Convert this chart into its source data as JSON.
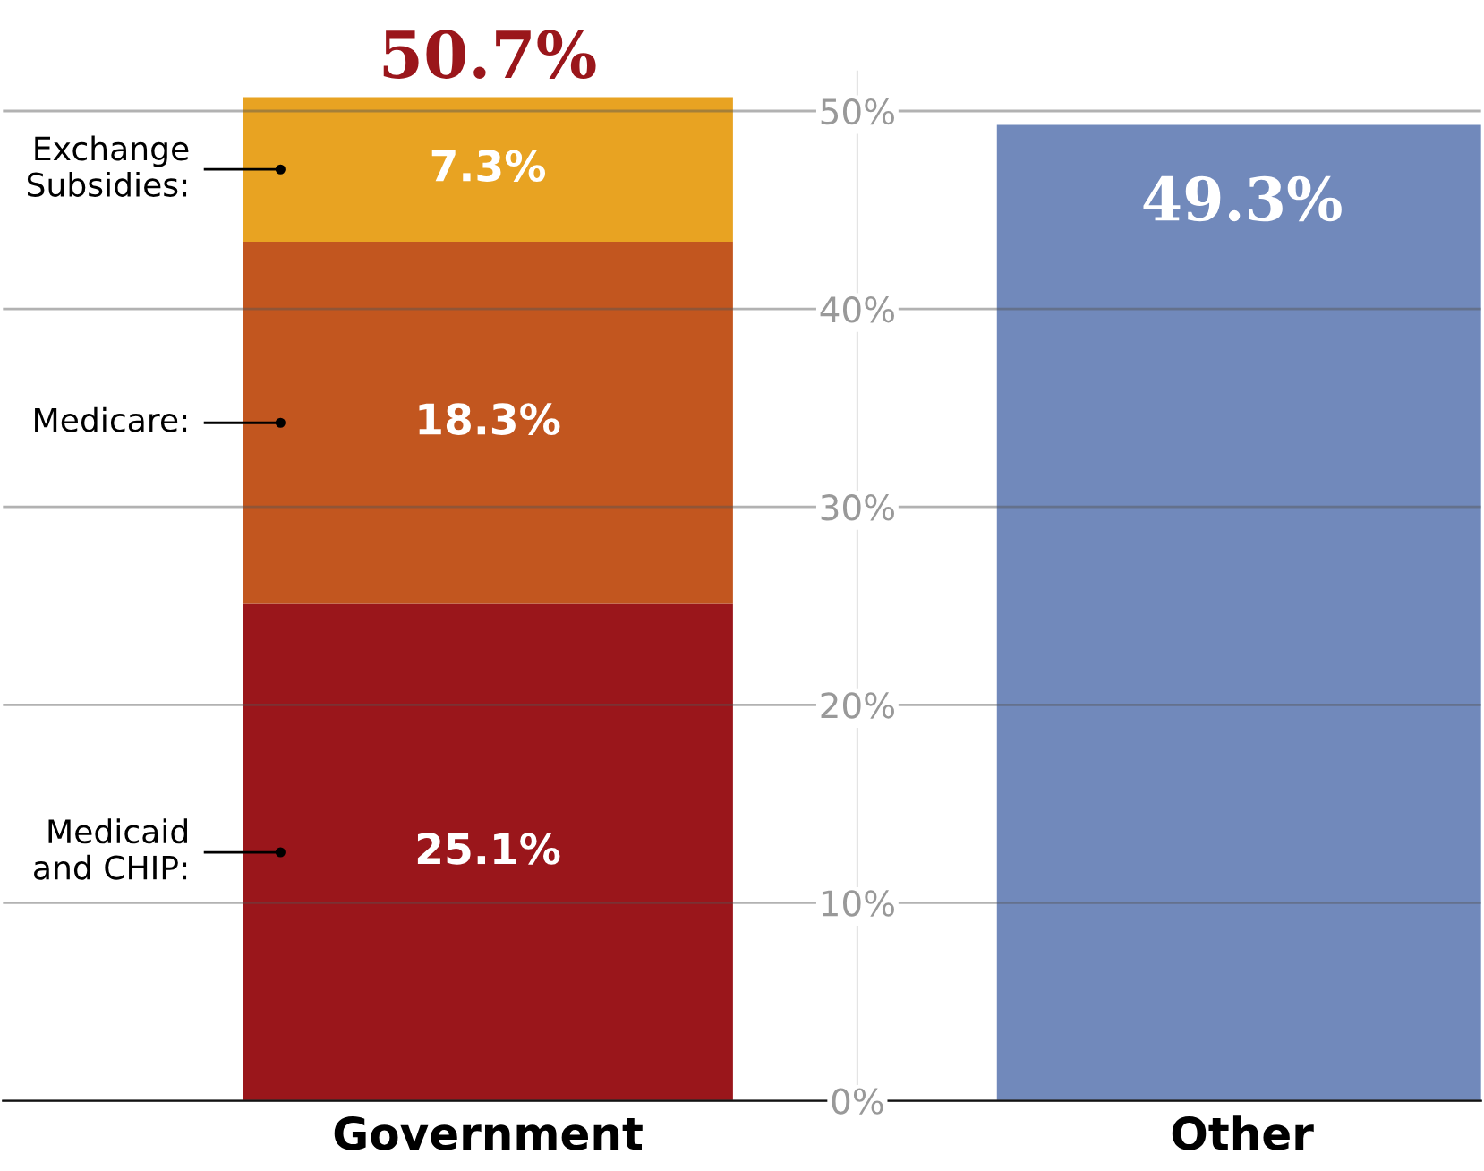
{
  "chart_data": {
    "type": "bar",
    "stacked": true,
    "categories": [
      "Government",
      "Other"
    ],
    "series": [
      {
        "name": "Medicaid\nand CHIP:",
        "color": "#9a161b",
        "values": [
          25.1,
          null
        ],
        "value_labels": [
          "25.1%",
          null
        ]
      },
      {
        "name": "Medicare:",
        "color": "#c2561f",
        "values": [
          18.3,
          null
        ],
        "value_labels": [
          "18.3%",
          null
        ]
      },
      {
        "name": "Exchange\nSubsidies:",
        "color": "#e8a322",
        "values": [
          7.3,
          null
        ],
        "value_labels": [
          "7.3%",
          null
        ]
      },
      {
        "color": "#7189bb",
        "values": [
          null,
          49.3
        ],
        "value_labels": [
          null,
          "49.3%"
        ]
      }
    ],
    "totals": [
      "50.7%",
      null
    ],
    "ylim": [
      0,
      52
    ],
    "yticks": [
      {
        "value": 0,
        "label": "0%"
      },
      {
        "value": 10,
        "label": "10%"
      },
      {
        "value": 20,
        "label": "20%"
      },
      {
        "value": 30,
        "label": "30%"
      },
      {
        "value": 40,
        "label": "40%"
      },
      {
        "value": 50,
        "label": "50%"
      }
    ],
    "grid": "y",
    "legend": false
  }
}
